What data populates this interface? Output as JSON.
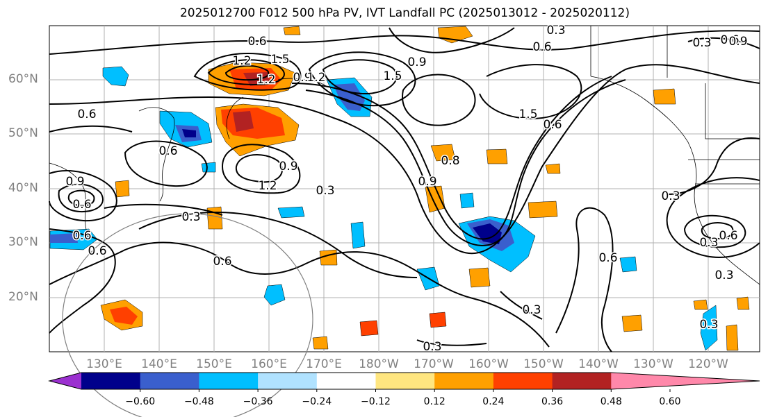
{
  "title": "2025012700 F012 500 hPa PV, IVT Landfall PC (2025013012 - 2025020112)",
  "map": {
    "lon_range": [
      120,
      250
    ],
    "lat_range": [
      10,
      70
    ],
    "lat_labels": [
      "20°N",
      "30°N",
      "40°N",
      "50°N",
      "60°N"
    ],
    "lon_labels": [
      "130°E",
      "140°E",
      "150°E",
      "160°E",
      "170°E",
      "180°W",
      "170°W",
      "160°W",
      "150°W",
      "140°W",
      "130°W",
      "120°W"
    ],
    "contour_labels": [
      "0.6",
      "1.2",
      "1.5",
      "1.2",
      "0.9",
      "1.5",
      "1.2",
      "0.6",
      "0.3",
      "0.6",
      "0.9",
      "0.6",
      "1.5",
      "0.6",
      "0.9",
      "0.6",
      "0.8",
      "0.9",
      "1.2",
      "0.3",
      "0.6",
      "0.3",
      "0.6",
      "0.9",
      "0.6",
      "0.3",
      "0.6",
      "0.3",
      "0.3",
      "0.3",
      "0.3",
      "0.3",
      "0.9",
      "0.6",
      "0.3",
      "0.6"
    ]
  },
  "colorbar": {
    "ticks": [
      "−0.60",
      "−0.48",
      "−0.36",
      "−0.24",
      "−0.12",
      "0.12",
      "0.24",
      "0.36",
      "0.48",
      "0.60"
    ],
    "colors": [
      "#9b30d0",
      "#00008b",
      "#3a5fcd",
      "#00bfff",
      "#b0e2ff",
      "#ffffff",
      "#ffe680",
      "#ffa000",
      "#ff4000",
      "#b22222",
      "#ff88aa"
    ]
  }
}
